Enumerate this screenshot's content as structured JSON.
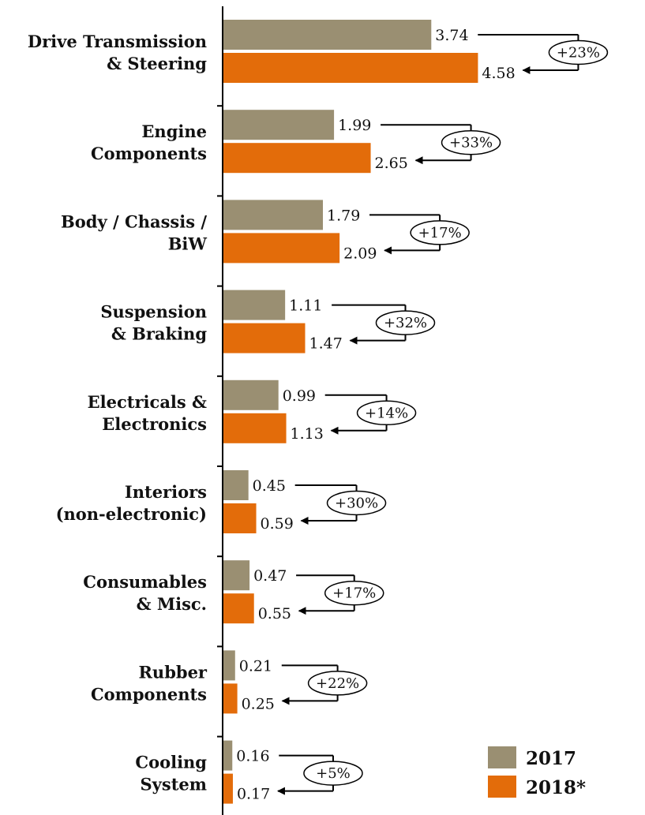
{
  "chart_data": {
    "type": "bar",
    "orientation": "horizontal",
    "categories": [
      "Drive Transmission\n& Steering",
      "Engine\nComponents",
      "Body / Chassis /\nBiW",
      "Suspension\n& Braking",
      "Electricals &\nElectronics",
      "Interiors\n(non-electronic)",
      "Consumables\n& Misc.",
      "Rubber\nComponents",
      "Cooling\nSystem"
    ],
    "series": [
      {
        "name": "2017",
        "color": "#9a8f72",
        "values": [
          3.74,
          1.99,
          1.79,
          1.11,
          0.99,
          0.45,
          0.47,
          0.21,
          0.16
        ],
        "labels": [
          "3.74",
          "1.99",
          "1.79",
          "1.11",
          "0.99",
          "0.45",
          "0.47",
          "0.21",
          "0.16"
        ]
      },
      {
        "name": "2018*",
        "color": "#e36c0a",
        "values": [
          4.58,
          2.65,
          2.09,
          1.47,
          1.13,
          0.59,
          0.55,
          0.25,
          0.17
        ],
        "labels": [
          "4.58",
          "2.65",
          "2.09",
          "1.47",
          "1.13",
          "0.59",
          "0.55",
          "0.25",
          "0.17"
        ]
      }
    ],
    "growth": [
      "+23%",
      "+33%",
      "+17%",
      "+32%",
      "+14%",
      "+30%",
      "+17%",
      "+22%",
      "+5%"
    ],
    "legend_position": "bottom-right",
    "grid": false,
    "xlim": [
      0,
      5
    ]
  }
}
